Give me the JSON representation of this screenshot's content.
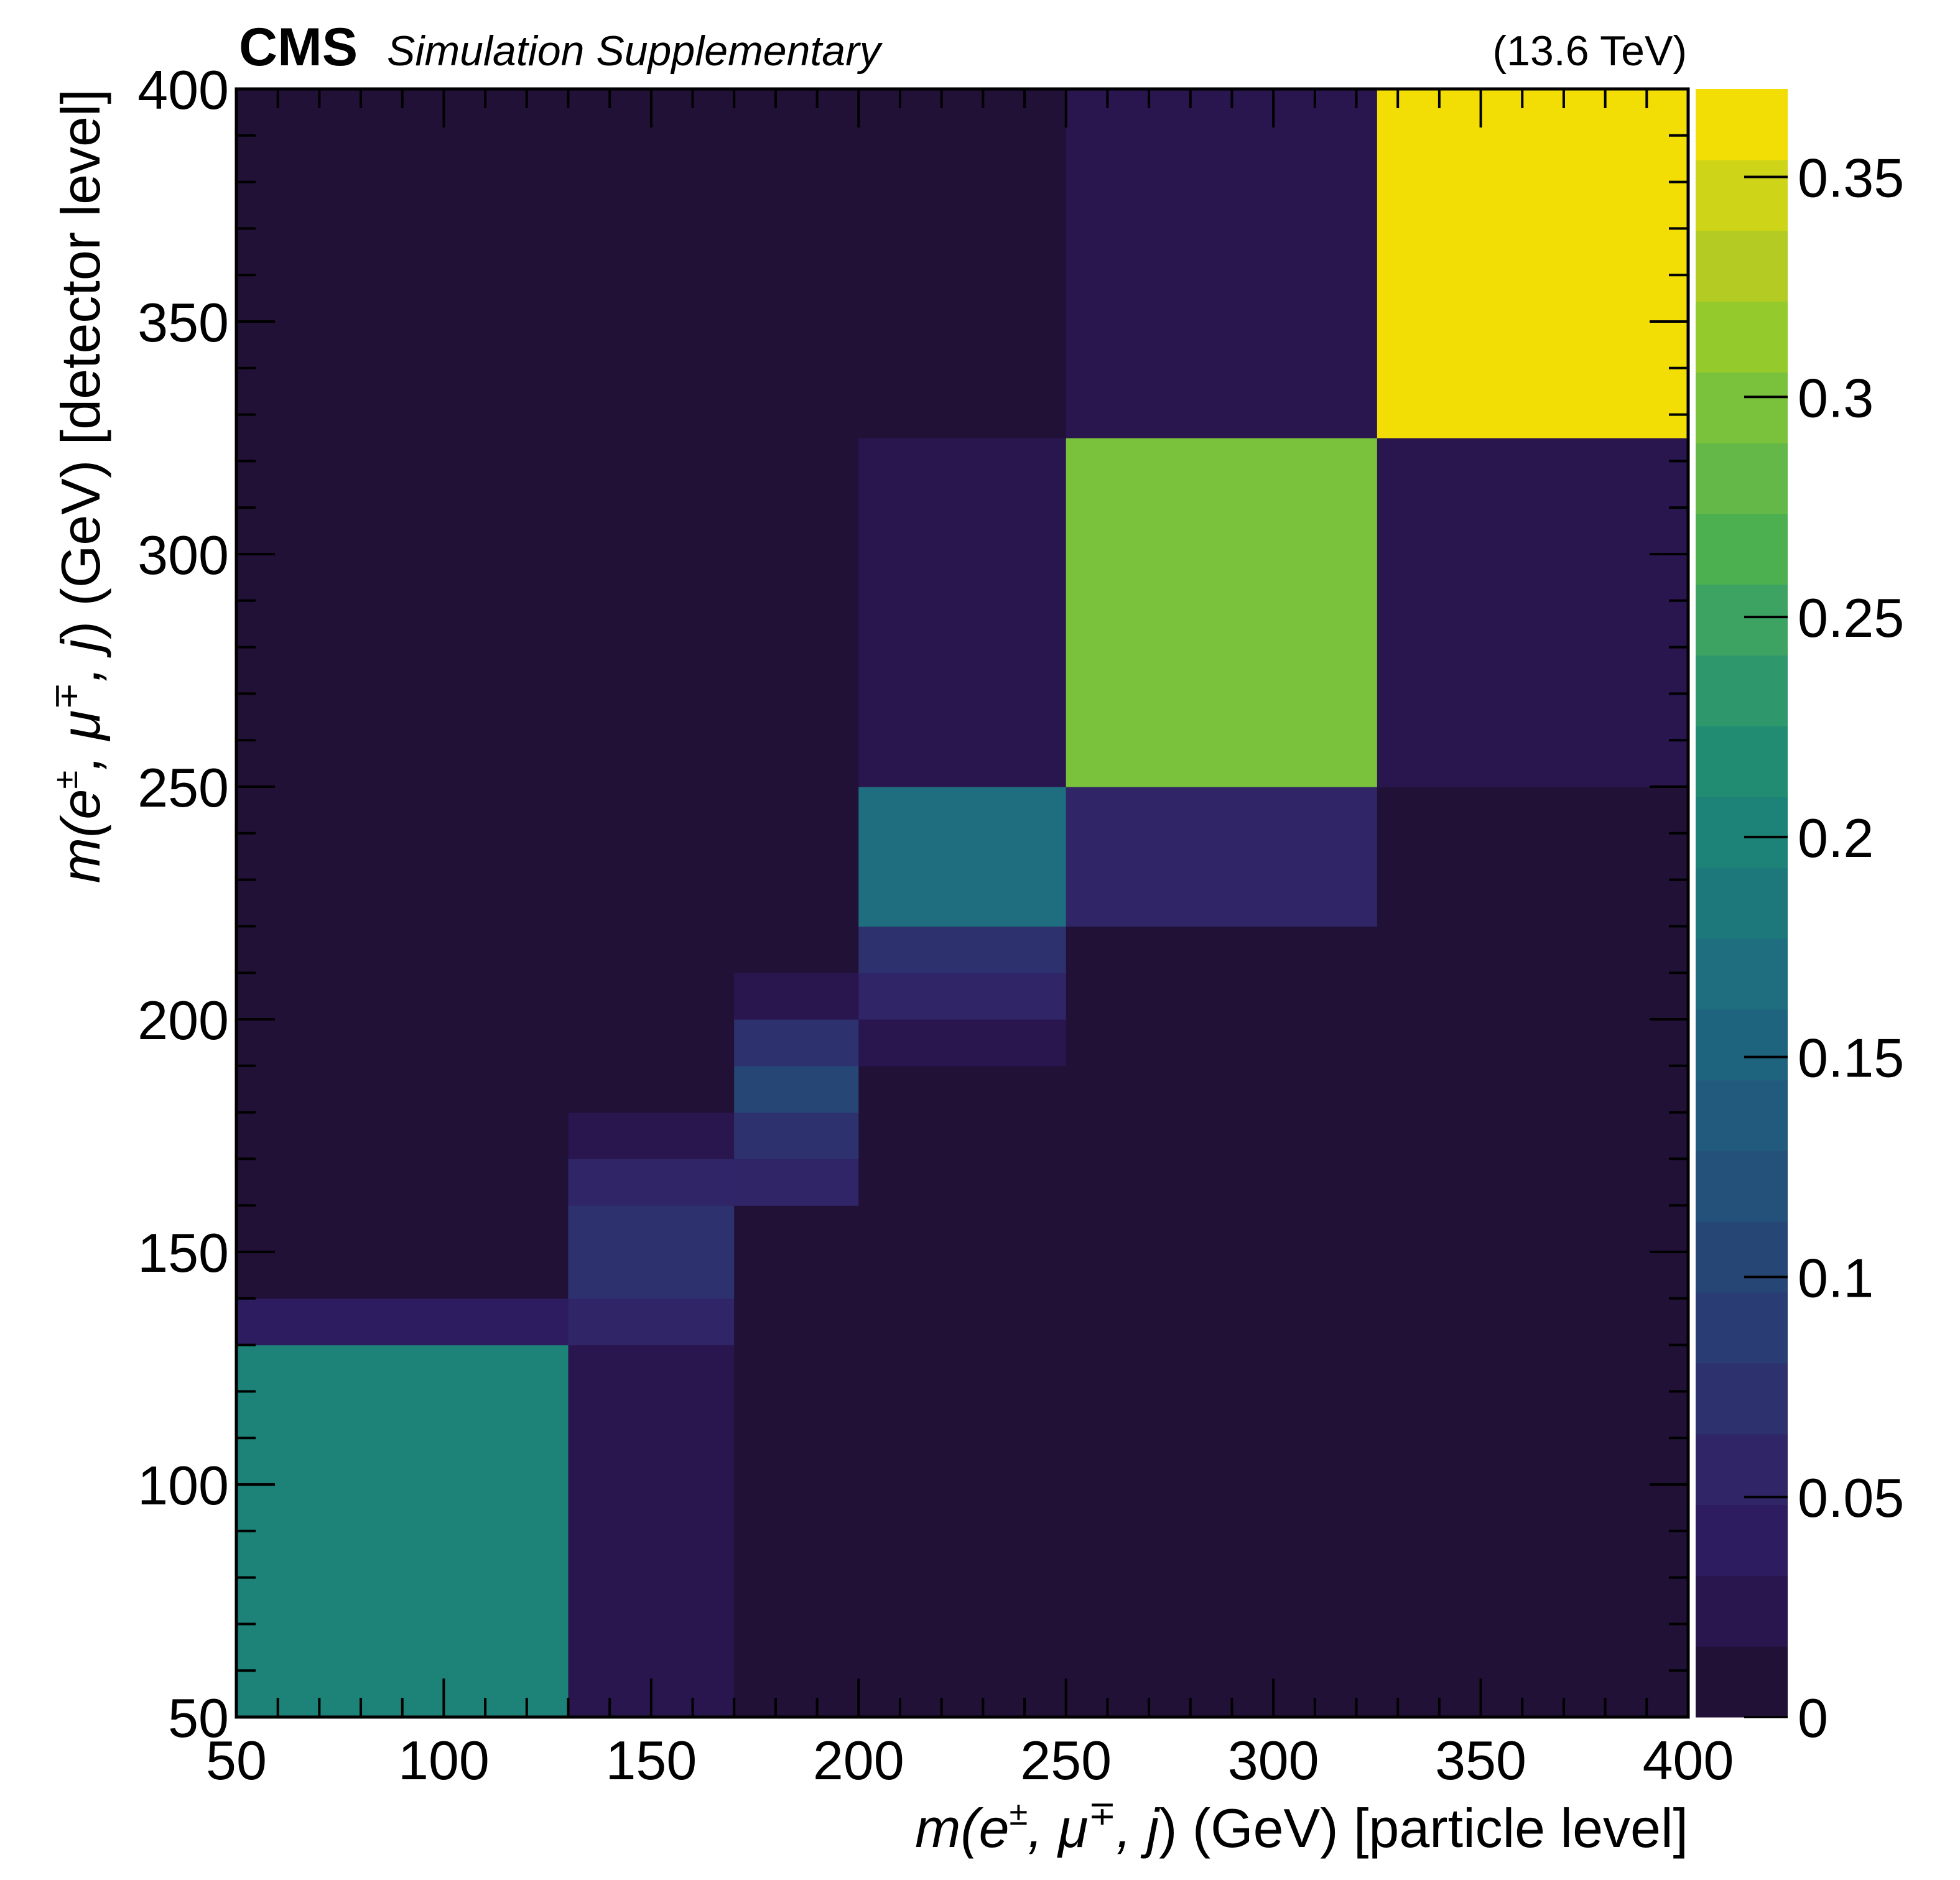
{
  "header": {
    "experiment": "CMS",
    "status": "Simulation Supplementary",
    "energy": "(13.6 TeV)"
  },
  "chart_data": {
    "type": "heatmap",
    "x_edges": [
      50,
      130,
      170,
      200,
      250,
      325,
      400
    ],
    "y_edges": [
      50,
      130,
      140,
      160,
      170,
      180,
      190,
      200,
      210,
      220,
      250,
      325,
      400
    ],
    "xlim": [
      50,
      400
    ],
    "ylim": [
      50,
      400
    ],
    "x_ticks": [
      50,
      100,
      150,
      200,
      250,
      300,
      350,
      400
    ],
    "y_ticks": [
      50,
      100,
      150,
      200,
      250,
      300,
      350,
      400
    ],
    "xlabel": {
      "main": "m(e",
      "sup1": "±",
      "mid": ", μ",
      "sup2": "∓",
      "tail1": ", j",
      "tail2": ") (GeV) [particle level]"
    },
    "ylabel": {
      "main": "m(e",
      "sup1": "±",
      "mid": ", μ",
      "sup2": "∓",
      "tail1": ", j",
      "tail2": ") (GeV) [detector level]"
    },
    "z": [
      [
        0.2,
        0.03,
        0.0,
        0.0,
        0.0,
        0.0
      ],
      [
        0.04,
        0.06,
        0.0,
        0.0,
        0.0,
        0.0
      ],
      [
        0.0,
        0.07,
        0.0,
        0.0,
        0.0,
        0.0
      ],
      [
        0.0,
        0.05,
        0.06,
        0.0,
        0.0,
        0.0
      ],
      [
        0.0,
        0.03,
        0.07,
        0.0,
        0.0,
        0.0
      ],
      [
        0.0,
        0.0,
        0.11,
        0.0,
        0.0,
        0.0
      ],
      [
        0.0,
        0.0,
        0.08,
        0.02,
        0.0,
        0.0
      ],
      [
        0.0,
        0.0,
        0.02,
        0.06,
        0.0,
        0.0
      ],
      [
        0.0,
        0.0,
        0.0,
        0.08,
        0.0,
        0.0
      ],
      [
        0.0,
        0.0,
        0.0,
        0.17,
        0.05,
        0.0
      ],
      [
        0.0,
        0.0,
        0.0,
        0.03,
        0.3,
        0.03
      ],
      [
        0.0,
        0.0,
        0.0,
        0.0,
        0.03,
        0.37
      ]
    ],
    "colorbar": {
      "zlim": [
        0,
        0.37
      ],
      "ticks": [
        "0",
        "0.05",
        "0.1",
        "0.15",
        "0.2",
        "0.25",
        "0.3",
        "0.35"
      ],
      "tick_values": [
        0,
        0.05,
        0.1,
        0.15,
        0.2,
        0.25,
        0.3,
        0.35
      ],
      "colors": [
        "#221137",
        "#29164E",
        "#2D1C5F",
        "#2F2567",
        "#2D326F",
        "#2A3C74",
        "#264776",
        "#23517A",
        "#225A7D",
        "#1F647F",
        "#1E6E7F",
        "#1C787B",
        "#1D8277",
        "#228C72",
        "#2E976B",
        "#3DA362",
        "#4CB050",
        "#63B847",
        "#7AC23C",
        "#95CA2C",
        "#B3CB22",
        "#CED418",
        "#F2DD05"
      ]
    }
  }
}
